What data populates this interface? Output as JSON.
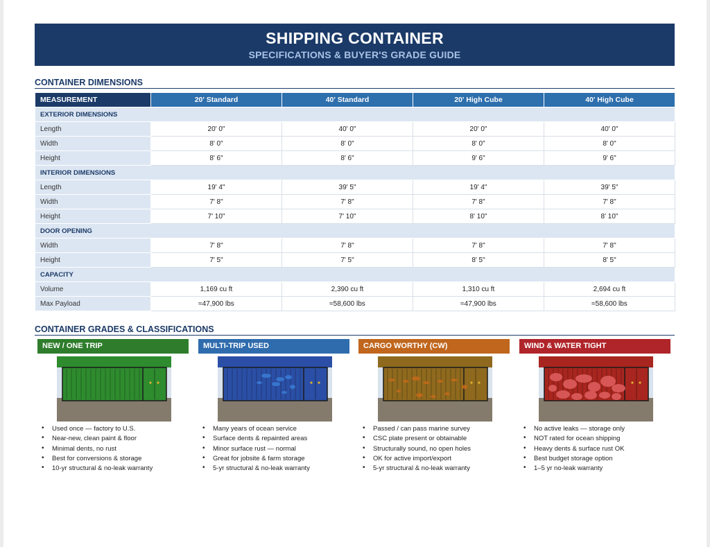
{
  "title": "SHIPPING CONTAINER",
  "subtitle": "SPECIFICATIONS & BUYER'S GRADE GUIDE",
  "dimensions": {
    "heading": "CONTAINER DIMENSIONS",
    "header": [
      "MEASUREMENT",
      "20' Standard",
      "40' Standard",
      "20' High Cube",
      "40' High Cube"
    ],
    "groups": [
      {
        "name": "EXTERIOR DIMENSIONS",
        "rows": [
          {
            "label": "Length",
            "values": [
              "20' 0\"",
              "40' 0\"",
              "20' 0\"",
              "40' 0\""
            ]
          },
          {
            "label": "Width",
            "values": [
              "8' 0\"",
              "8' 0\"",
              "8' 0\"",
              "8' 0\""
            ]
          },
          {
            "label": "Height",
            "values": [
              "8' 6\"",
              "8' 6\"",
              "9' 6\"",
              "9' 6\""
            ]
          }
        ]
      },
      {
        "name": "INTERIOR DIMENSIONS",
        "rows": [
          {
            "label": "Length",
            "values": [
              "19' 4\"",
              "39' 5\"",
              "19' 4\"",
              "39' 5\""
            ]
          },
          {
            "label": "Width",
            "values": [
              "7' 8\"",
              "7' 8\"",
              "7' 8\"",
              "7' 8\""
            ]
          },
          {
            "label": "Height",
            "values": [
              "7' 10\"",
              "7' 10\"",
              "8' 10\"",
              "8' 10\""
            ]
          }
        ]
      },
      {
        "name": "DOOR OPENING",
        "rows": [
          {
            "label": "Width",
            "values": [
              "7' 8\"",
              "7' 8\"",
              "7' 8\"",
              "7' 8\""
            ]
          },
          {
            "label": "Height",
            "values": [
              "7' 5\"",
              "7' 5\"",
              "8' 5\"",
              "8' 5\""
            ]
          }
        ]
      },
      {
        "name": "CAPACITY",
        "rows": [
          {
            "label": "Volume",
            "values": [
              "1,169 cu ft",
              "2,390 cu ft",
              "1,310 cu ft",
              "2,694 cu ft"
            ]
          },
          {
            "label": "Max Payload",
            "values": [
              "≈47,900 lbs",
              "≈58,600 lbs",
              "≈47,900 lbs",
              "≈58,600 lbs"
            ]
          }
        ]
      }
    ]
  },
  "grades": {
    "heading": "CONTAINER GRADES & CLASSIFICATIONS",
    "items": [
      {
        "name": "NEW / ONE TRIP",
        "color": "#2f7d2c",
        "container_color": "#2e8b2e",
        "damage": "none",
        "features": [
          "Used once — factory to U.S.",
          "Near-new, clean paint & floor",
          "Minimal dents, no rust",
          "Best for conversions & storage",
          "10-yr structural & no-leak warranty"
        ]
      },
      {
        "name": "MULTI-TRIP USED",
        "color": "#2f6cad",
        "container_color": "#2b4fa6",
        "damage": "light",
        "features": [
          "Many years of ocean service",
          "Surface dents & repainted areas",
          "Minor surface rust — normal",
          "Great for jobsite & farm storage",
          "5-yr structural & no-leak warranty"
        ]
      },
      {
        "name": "CARGO WORTHY (CW)",
        "color": "#c0661d",
        "container_color": "#8f6a1e",
        "damage": "medium",
        "features": [
          "Passed / can pass marine survey",
          "CSC plate present or obtainable",
          "Structurally sound, no open holes",
          "OK for active import/export",
          "5-yr structural & no-leak warranty"
        ]
      },
      {
        "name": "WIND & WATER TIGHT",
        "color": "#b0252a",
        "container_color": "#a8261f",
        "damage": "heavy",
        "features": [
          "No active leaks — storage only",
          "NOT rated for ocean shipping",
          "Heavy dents & surface rust OK",
          "Best budget storage option",
          "1–5 yr no-leak warranty"
        ]
      }
    ]
  }
}
